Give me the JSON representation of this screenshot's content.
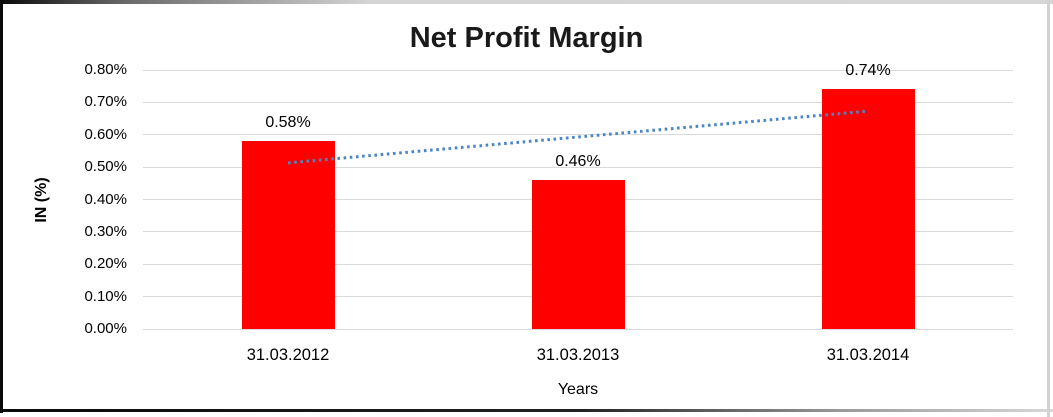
{
  "chart": {
    "title": "Net Profit Margin",
    "ylabel": "IN (%)",
    "xlabel": "Years"
  },
  "chart_data": {
    "type": "bar",
    "title": "Net Profit Margin",
    "xlabel": "Years",
    "ylabel": "IN (%)",
    "categories": [
      "31.03.2012",
      "31.03.2013",
      "31.03.2014"
    ],
    "values": [
      0.58,
      0.46,
      0.74
    ],
    "data_labels": [
      "0.58%",
      "0.46%",
      "0.74%"
    ],
    "ylim": [
      0,
      0.8
    ],
    "ytick_step": 0.1,
    "ytick_labels": [
      "0.00%",
      "0.10%",
      "0.20%",
      "0.30%",
      "0.40%",
      "0.50%",
      "0.60%",
      "0.70%",
      "0.80%"
    ],
    "grid": true,
    "legend": false,
    "bar_color": "#ff0000",
    "gridline_color": "#d9d9d9",
    "text_color": "#000000",
    "trendline": {
      "type": "linear",
      "style": "dotted",
      "color": "#4a86c6",
      "start_value": 0.513,
      "end_value": 0.673
    }
  }
}
